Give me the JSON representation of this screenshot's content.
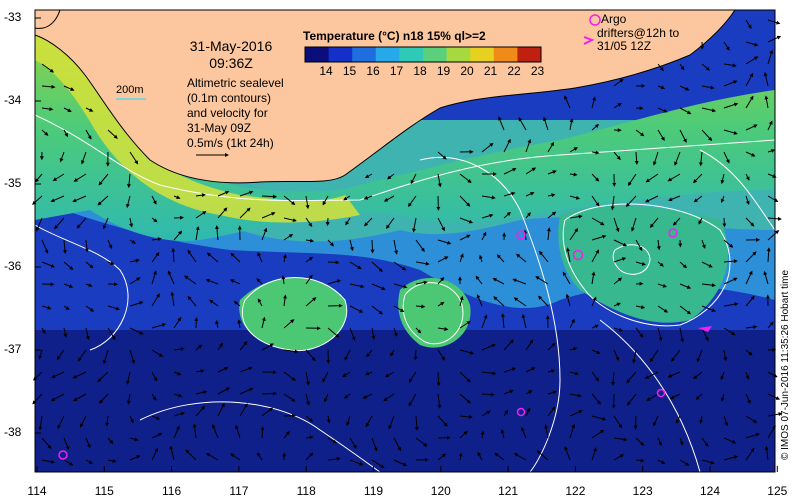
{
  "map": {
    "date": "31-May-2016",
    "time": "09:36Z",
    "colorbar_title": "Temperature (°C) n18 15% ql>=2",
    "colorbar_ticks": [
      "14",
      "15",
      "16",
      "17",
      "18",
      "19",
      "20",
      "21",
      "22",
      "23"
    ],
    "colorbar_colors": [
      "#0a0d7a",
      "#1530c8",
      "#1f6ee0",
      "#27a8e8",
      "#2fc9b8",
      "#5ad07a",
      "#a8d840",
      "#e6d020",
      "#f08a18",
      "#c02010"
    ],
    "scale_label": "200m",
    "altimetry_note": [
      "Altimetric sealevel",
      "(0.1m contours)",
      "and velocity for",
      "31-May 09Z",
      "0.5m/s (1kt 24h)"
    ],
    "argo_label": "Argo",
    "drifters_label": [
      "drifters@12h to",
      "31/05 12Z"
    ],
    "x_ticks": [
      "114",
      "115",
      "116",
      "117",
      "118",
      "119",
      "120",
      "121",
      "122",
      "123",
      "124",
      "125"
    ],
    "y_ticks": [
      "-33",
      "-34",
      "-35",
      "-36",
      "-37",
      "-38"
    ],
    "credit": "© IMOS 07-Jun-2016 11:35:26 Hobart time",
    "colors": {
      "land": "#fcc79e",
      "coast": "#000000",
      "argo": "#ee22ee",
      "contour": "#ffffff"
    }
  }
}
